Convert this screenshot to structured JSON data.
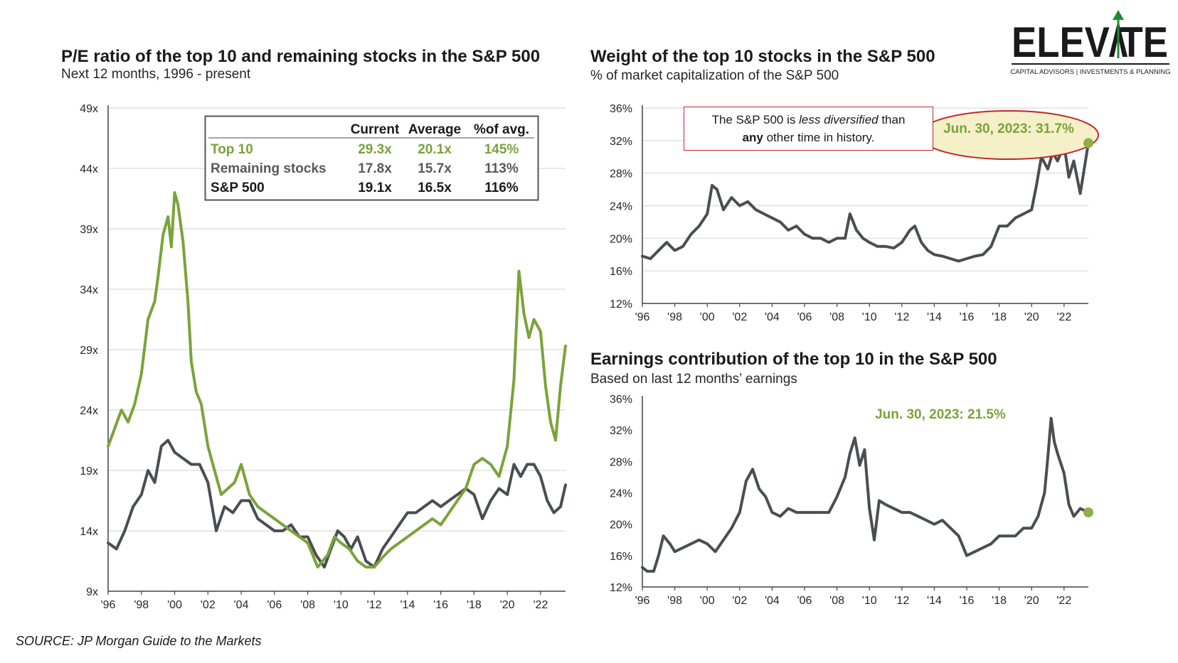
{
  "logo": {
    "name": "ELEVATE",
    "tagline": "CAPITAL ADVISORS | INVESTMENTS & PLANNING",
    "color": "#1a1a1a",
    "accent": "#1e8a2e"
  },
  "source": "SOURCE: JP Morgan Guide to the Markets",
  "colors": {
    "top10": "#7aa33a",
    "remaining": "#4a4d52",
    "sp500": "#1a1a1a",
    "grid": "#d9d9d9",
    "callout_border": "#c0282e",
    "callout_fill": "#f5f0c8"
  },
  "chart_data": [
    {
      "id": "pe",
      "type": "line",
      "title": "P/E ratio of the top 10 and remaining stocks in the S&P 500",
      "subtitle": "Next 12 months, 1996 - present",
      "xlim": [
        1996,
        2023.5
      ],
      "ylim": [
        9,
        49
      ],
      "y_ticks": [
        9,
        14,
        19,
        24,
        29,
        34,
        39,
        44,
        49
      ],
      "y_tick_labels": [
        "9x",
        "14x",
        "19x",
        "24x",
        "29x",
        "34x",
        "39x",
        "44x",
        "49x"
      ],
      "x_ticks": [
        1996,
        1998,
        2000,
        2002,
        2004,
        2006,
        2008,
        2010,
        2012,
        2014,
        2016,
        2018,
        2020,
        2022
      ],
      "x_tick_labels": [
        "'96",
        "'98",
        "'00",
        "'02",
        "'04",
        "'06",
        "'08",
        "'10",
        "'12",
        "'14",
        "'16",
        "'18",
        "'20",
        "'22"
      ],
      "grid": "horizontal",
      "series": [
        {
          "name": "Top 10",
          "color": "#7aa33a",
          "x": [
            1996.0,
            1996.4,
            1996.8,
            1997.2,
            1997.6,
            1998.0,
            1998.4,
            1998.8,
            1999.0,
            1999.3,
            1999.6,
            1999.8,
            2000.0,
            2000.2,
            2000.5,
            2000.8,
            2001.0,
            2001.3,
            2001.6,
            2002.0,
            2002.4,
            2002.8,
            2003.2,
            2003.6,
            2004.0,
            2004.5,
            2005.0,
            2005.5,
            2006.0,
            2006.5,
            2007.0,
            2007.5,
            2008.0,
            2008.3,
            2008.6,
            2008.9,
            2009.2,
            2009.6,
            2010.0,
            2010.5,
            2011.0,
            2011.5,
            2012.0,
            2012.5,
            2013.0,
            2013.5,
            2014.0,
            2014.5,
            2015.0,
            2015.5,
            2016.0,
            2016.5,
            2017.0,
            2017.5,
            2018.0,
            2018.5,
            2019.0,
            2019.5,
            2020.0,
            2020.4,
            2020.7,
            2021.0,
            2021.3,
            2021.6,
            2022.0,
            2022.3,
            2022.6,
            2022.9,
            2023.2,
            2023.5
          ],
          "values": [
            21.0,
            22.5,
            24.0,
            23.0,
            24.5,
            27.0,
            31.5,
            33.0,
            35.0,
            38.5,
            40.0,
            37.5,
            42.0,
            41.0,
            38.0,
            33.0,
            28.0,
            25.5,
            24.5,
            21.0,
            19.0,
            17.0,
            17.5,
            18.0,
            19.5,
            17.0,
            16.0,
            15.5,
            15.0,
            14.5,
            14.0,
            13.5,
            13.0,
            12.0,
            11.0,
            11.5,
            12.0,
            13.5,
            13.0,
            12.5,
            11.5,
            11.0,
            11.0,
            11.8,
            12.5,
            13.0,
            13.5,
            14.0,
            14.5,
            15.0,
            14.5,
            15.5,
            16.5,
            17.5,
            19.5,
            20.0,
            19.5,
            18.5,
            21.0,
            26.5,
            35.5,
            32.0,
            30.0,
            31.5,
            30.5,
            26.0,
            23.0,
            21.5,
            26.0,
            29.3
          ]
        },
        {
          "name": "Remaining stocks",
          "color": "#4a4d52",
          "x": [
            1996.0,
            1996.5,
            1997.0,
            1997.5,
            1998.0,
            1998.4,
            1998.8,
            1999.2,
            1999.6,
            2000.0,
            2000.5,
            2001.0,
            2001.5,
            2002.0,
            2002.5,
            2003.0,
            2003.5,
            2004.0,
            2004.5,
            2005.0,
            2005.5,
            2006.0,
            2006.5,
            2007.0,
            2007.5,
            2008.0,
            2008.5,
            2009.0,
            2009.4,
            2009.8,
            2010.2,
            2010.6,
            2011.0,
            2011.5,
            2012.0,
            2012.5,
            2013.0,
            2013.5,
            2014.0,
            2014.5,
            2015.0,
            2015.5,
            2016.0,
            2016.5,
            2017.0,
            2017.5,
            2018.0,
            2018.5,
            2019.0,
            2019.5,
            2020.0,
            2020.4,
            2020.8,
            2021.2,
            2021.6,
            2022.0,
            2022.4,
            2022.8,
            2023.2,
            2023.5
          ],
          "values": [
            13.0,
            12.5,
            14.0,
            16.0,
            17.0,
            19.0,
            18.0,
            21.0,
            21.5,
            20.5,
            20.0,
            19.5,
            19.5,
            18.0,
            14.0,
            16.0,
            15.5,
            16.5,
            16.5,
            15.0,
            14.5,
            14.0,
            14.0,
            14.5,
            13.5,
            13.5,
            12.0,
            11.0,
            12.5,
            14.0,
            13.5,
            12.5,
            13.5,
            11.5,
            11.0,
            12.5,
            13.5,
            14.5,
            15.5,
            15.5,
            16.0,
            16.5,
            16.0,
            16.5,
            17.0,
            17.5,
            17.0,
            15.0,
            16.5,
            17.5,
            17.0,
            19.5,
            18.5,
            19.5,
            19.5,
            18.5,
            16.5,
            15.5,
            16.0,
            17.8
          ]
        }
      ],
      "table": {
        "columns": [
          "",
          "Current",
          "Average",
          "%of avg."
        ],
        "rows": [
          {
            "label": "Top 10",
            "current": "29.3x",
            "average": "20.1x",
            "pct": "145%",
            "color": "#7aa33a",
            "bold": true
          },
          {
            "label": "Remaining stocks",
            "current": "17.8x",
            "average": "15.7x",
            "pct": "113%",
            "color": "#595959",
            "bold": true
          },
          {
            "label": "S&P 500",
            "current": "19.1x",
            "average": "16.5x",
            "pct": "116%",
            "color": "#1a1a1a",
            "bold": true
          }
        ]
      }
    },
    {
      "id": "weight",
      "type": "line",
      "title": "Weight of the top 10 stocks in the S&P 500",
      "subtitle": "% of market capitalization of the S&P 500",
      "xlim": [
        1996,
        2023.5
      ],
      "ylim": [
        12,
        36
      ],
      "y_ticks": [
        12,
        16,
        20,
        24,
        28,
        32,
        36
      ],
      "y_tick_labels": [
        "12%",
        "16%",
        "20%",
        "24%",
        "28%",
        "32%",
        "36%"
      ],
      "x_ticks": [
        1996,
        1998,
        2000,
        2002,
        2004,
        2006,
        2008,
        2010,
        2012,
        2014,
        2016,
        2018,
        2020,
        2022
      ],
      "x_tick_labels": [
        "'96",
        "'98",
        "'00",
        "'02",
        "'04",
        "'06",
        "'08",
        "'10",
        "'12",
        "'14",
        "'16",
        "'18",
        "'20",
        "'22"
      ],
      "grid": "horizontal",
      "annotation_value": "Jun. 30, 2023: 31.7%",
      "note": {
        "line1_a": "The S&P 500 is ",
        "line1_em": "less diversified",
        "line1_b": " than",
        "line2_strong": "any",
        "line2_rest": " other time in history."
      },
      "series": [
        {
          "name": "",
          "color": "#4a4d52",
          "x": [
            1996.0,
            1996.5,
            1997.0,
            1997.5,
            1998.0,
            1998.5,
            1999.0,
            1999.5,
            2000.0,
            2000.3,
            2000.6,
            2001.0,
            2001.5,
            2002.0,
            2002.5,
            2003.0,
            2003.5,
            2004.0,
            2004.5,
            2005.0,
            2005.5,
            2006.0,
            2006.5,
            2007.0,
            2007.5,
            2008.0,
            2008.5,
            2008.8,
            2009.2,
            2009.6,
            2010.0,
            2010.5,
            2011.0,
            2011.5,
            2012.0,
            2012.5,
            2012.8,
            2013.2,
            2013.6,
            2014.0,
            2014.5,
            2015.0,
            2015.5,
            2016.0,
            2016.5,
            2017.0,
            2017.5,
            2018.0,
            2018.5,
            2019.0,
            2019.5,
            2020.0,
            2020.3,
            2020.6,
            2021.0,
            2021.3,
            2021.6,
            2022.0,
            2022.3,
            2022.6,
            2023.0,
            2023.5
          ],
          "values": [
            17.8,
            17.5,
            18.5,
            19.5,
            18.5,
            19.0,
            20.5,
            21.5,
            23.0,
            26.5,
            26.0,
            23.5,
            25.0,
            24.0,
            24.5,
            23.5,
            23.0,
            22.5,
            22.0,
            21.0,
            21.5,
            20.5,
            20.0,
            20.0,
            19.5,
            20.0,
            20.0,
            23.0,
            21.0,
            20.0,
            19.5,
            19.0,
            19.0,
            18.8,
            19.5,
            21.0,
            21.5,
            19.5,
            18.5,
            18.0,
            17.8,
            17.5,
            17.2,
            17.5,
            17.8,
            18.0,
            19.0,
            21.5,
            21.5,
            22.5,
            23.0,
            23.5,
            26.5,
            30.0,
            28.5,
            30.5,
            29.5,
            31.5,
            27.5,
            29.5,
            25.5,
            31.7
          ]
        }
      ]
    },
    {
      "id": "earnings",
      "type": "line",
      "title": "Earnings contribution of the top 10 in the S&P 500",
      "subtitle": "Based on last 12 months’ earnings",
      "xlim": [
        1996,
        2023.5
      ],
      "ylim": [
        12,
        36
      ],
      "y_ticks": [
        12,
        16,
        20,
        24,
        28,
        32,
        36
      ],
      "y_tick_labels": [
        "12%",
        "16%",
        "20%",
        "24%",
        "28%",
        "32%",
        "36%"
      ],
      "x_ticks": [
        1996,
        1998,
        2000,
        2002,
        2004,
        2006,
        2008,
        2010,
        2012,
        2014,
        2016,
        2018,
        2020,
        2022
      ],
      "x_tick_labels": [
        "'96",
        "'98",
        "'00",
        "'02",
        "'04",
        "'06",
        "'08",
        "'10",
        "'12",
        "'14",
        "'16",
        "'18",
        "'20",
        "'22"
      ],
      "grid": "none",
      "annotation_value": "Jun. 30, 2023: 21.5%",
      "series": [
        {
          "name": "",
          "color": "#4a4d52",
          "x": [
            1996.0,
            1996.3,
            1996.7,
            1997.0,
            1997.3,
            1997.7,
            1998.0,
            1998.5,
            1999.0,
            1999.5,
            2000.0,
            2000.5,
            2001.0,
            2001.5,
            2002.0,
            2002.4,
            2002.8,
            2003.2,
            2003.6,
            2004.0,
            2004.5,
            2005.0,
            2005.5,
            2006.0,
            2006.5,
            2007.0,
            2007.5,
            2008.0,
            2008.5,
            2008.8,
            2009.1,
            2009.4,
            2009.7,
            2010.0,
            2010.3,
            2010.6,
            2011.0,
            2011.5,
            2012.0,
            2012.5,
            2013.0,
            2013.5,
            2014.0,
            2014.5,
            2015.0,
            2015.5,
            2016.0,
            2016.5,
            2017.0,
            2017.5,
            2018.0,
            2018.5,
            2019.0,
            2019.5,
            2020.0,
            2020.4,
            2020.8,
            2021.0,
            2021.2,
            2021.4,
            2021.6,
            2022.0,
            2022.3,
            2022.6,
            2023.0,
            2023.5
          ],
          "values": [
            14.5,
            14.0,
            14.0,
            16.0,
            18.5,
            17.5,
            16.5,
            17.0,
            17.5,
            18.0,
            17.5,
            16.5,
            18.0,
            19.5,
            21.5,
            25.5,
            27.0,
            24.5,
            23.5,
            21.5,
            21.0,
            22.0,
            21.5,
            21.5,
            21.5,
            21.5,
            21.5,
            23.5,
            26.0,
            29.0,
            31.0,
            27.5,
            29.5,
            22.0,
            18.0,
            23.0,
            22.5,
            22.0,
            21.5,
            21.5,
            21.0,
            20.5,
            20.0,
            20.5,
            19.5,
            18.5,
            16.0,
            16.5,
            17.0,
            17.5,
            18.5,
            18.5,
            18.5,
            19.5,
            19.5,
            21.0,
            24.0,
            28.5,
            33.5,
            30.5,
            29.0,
            26.5,
            22.5,
            21.0,
            22.0,
            21.5
          ]
        }
      ]
    }
  ]
}
